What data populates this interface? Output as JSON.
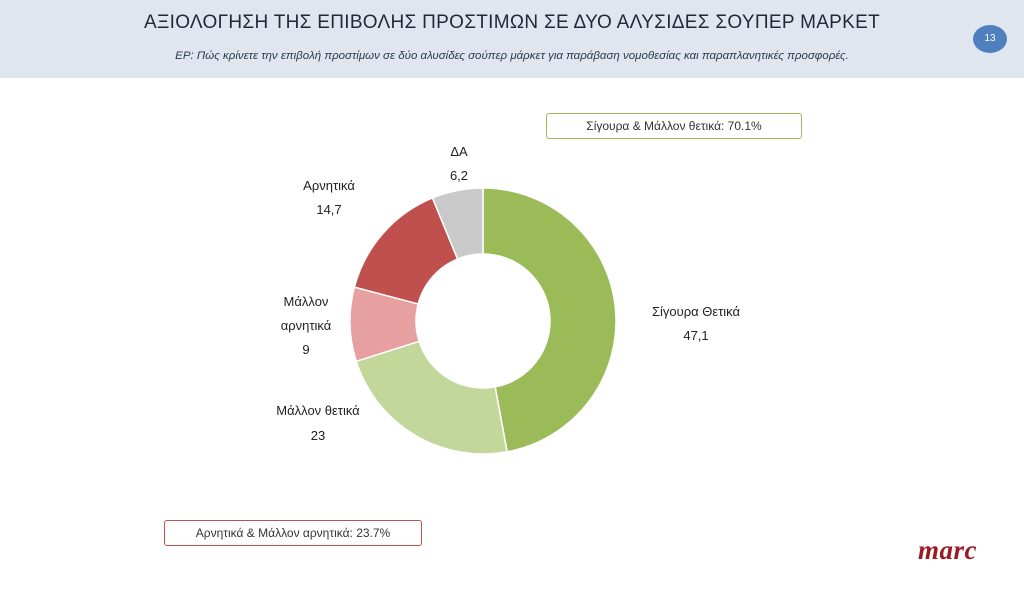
{
  "header": {
    "title": "ΑΞΙΟΛΟΓΗΣΗ ΤΗΣ ΕΠΙΒΟΛΗΣ ΠΡΟΣΤΙΜΩΝ ΣΕ ΔΥΟ ΑΛΥΣΙΔΕΣ ΣΟΥΠΕΡ ΜΑΡΚΕΤ",
    "question": "ΕΡ: Πώς κρίνετε την επιβολή προστίμων σε δύο αλυσίδες σούπερ μάρκετ για παράβαση νομοθεσίας και παραπλανητικές προσφορές.",
    "page_number": "13"
  },
  "summaries": {
    "positive": "Σίγουρα & Μάλλον θετικά: 70.1%",
    "negative": "Αρνητικά & Μάλλον αρνητικά: 23.7%"
  },
  "logo": "marc",
  "colors": {
    "positive_border": "#9bbb59",
    "negative_border": "#c0504d"
  },
  "chart_data": {
    "type": "pie",
    "variant": "donut",
    "slices": [
      {
        "label": "Σίγουρα Θετικά",
        "value": 47.1,
        "display": "47,1",
        "color": "#9bbb59"
      },
      {
        "label": "Μάλλον θετικά",
        "value": 23,
        "display": "23",
        "color": "#c4d79b"
      },
      {
        "label": "Μάλλον αρνητικά",
        "value": 9,
        "display": "9",
        "color": "#e6a09f"
      },
      {
        "label": "Αρνητικά",
        "value": 14.7,
        "display": "14,7",
        "color": "#c0504d"
      },
      {
        "label": "ΔΑ",
        "value": 6.2,
        "display": "6,2",
        "color": "#c9c9c9"
      }
    ]
  }
}
